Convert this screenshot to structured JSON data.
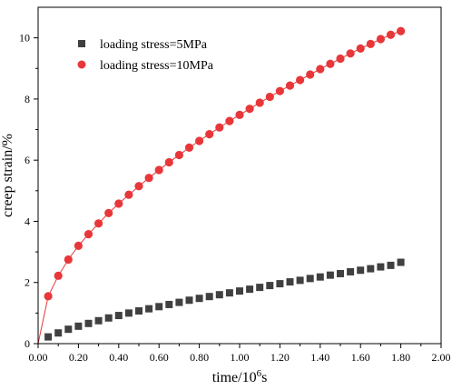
{
  "chart_data": {
    "type": "scatter",
    "xlabel_main": "time/10",
    "xlabel_sup": "6",
    "xlabel_unit": "s",
    "ylabel": "creep strain/%",
    "xlim": [
      0,
      2.0
    ],
    "ylim": [
      0,
      11
    ],
    "x_ticks": [
      0.0,
      0.2,
      0.4,
      0.6,
      0.8,
      1.0,
      1.2,
      1.4,
      1.6,
      1.8,
      2.0
    ],
    "x_tick_labels": [
      "0.00",
      "0.20",
      "0.40",
      "0.60",
      "0.80",
      "1.00",
      "1.20",
      "1.40",
      "1.60",
      "1.80",
      "2.00"
    ],
    "y_ticks": [
      0,
      2,
      4,
      6,
      8,
      10
    ],
    "y_tick_labels": [
      "0",
      "2",
      "4",
      "6",
      "8",
      "10"
    ],
    "legend_position": "top-left",
    "grid": false,
    "series": [
      {
        "name": "loading stress=5MPa",
        "marker": "square",
        "color": "#404040",
        "x": [
          0.05,
          0.1,
          0.15,
          0.2,
          0.25,
          0.3,
          0.35,
          0.4,
          0.45,
          0.5,
          0.55,
          0.6,
          0.65,
          0.7,
          0.75,
          0.8,
          0.85,
          0.9,
          0.95,
          1.0,
          1.05,
          1.1,
          1.15,
          1.2,
          1.25,
          1.3,
          1.35,
          1.4,
          1.45,
          1.5,
          1.55,
          1.6,
          1.65,
          1.7,
          1.75,
          1.8
        ],
        "y": [
          0.22,
          0.35,
          0.47,
          0.57,
          0.66,
          0.75,
          0.84,
          0.92,
          1.0,
          1.07,
          1.14,
          1.21,
          1.28,
          1.35,
          1.42,
          1.48,
          1.54,
          1.6,
          1.66,
          1.72,
          1.78,
          1.84,
          1.9,
          1.96,
          2.02,
          2.07,
          2.13,
          2.18,
          2.24,
          2.29,
          2.35,
          2.4,
          2.45,
          2.51,
          2.56,
          2.66
        ]
      },
      {
        "name": "loading stress=10MPa",
        "marker": "circle",
        "color": "#e8373a",
        "fit_color": "#e8373a",
        "x": [
          0.05,
          0.1,
          0.15,
          0.2,
          0.25,
          0.3,
          0.35,
          0.4,
          0.45,
          0.5,
          0.55,
          0.6,
          0.65,
          0.7,
          0.75,
          0.8,
          0.85,
          0.9,
          0.95,
          1.0,
          1.05,
          1.1,
          1.15,
          1.2,
          1.25,
          1.3,
          1.35,
          1.4,
          1.45,
          1.5,
          1.55,
          1.6,
          1.65,
          1.7,
          1.75,
          1.8
        ],
        "y": [
          1.55,
          2.22,
          2.75,
          3.2,
          3.58,
          3.93,
          4.27,
          4.58,
          4.87,
          5.15,
          5.42,
          5.68,
          5.93,
          6.17,
          6.41,
          6.63,
          6.85,
          7.07,
          7.28,
          7.48,
          7.68,
          7.88,
          8.07,
          8.26,
          8.44,
          8.62,
          8.8,
          8.98,
          9.15,
          9.32,
          9.49,
          9.65,
          9.8,
          9.96,
          10.1,
          10.22
        ]
      }
    ]
  }
}
